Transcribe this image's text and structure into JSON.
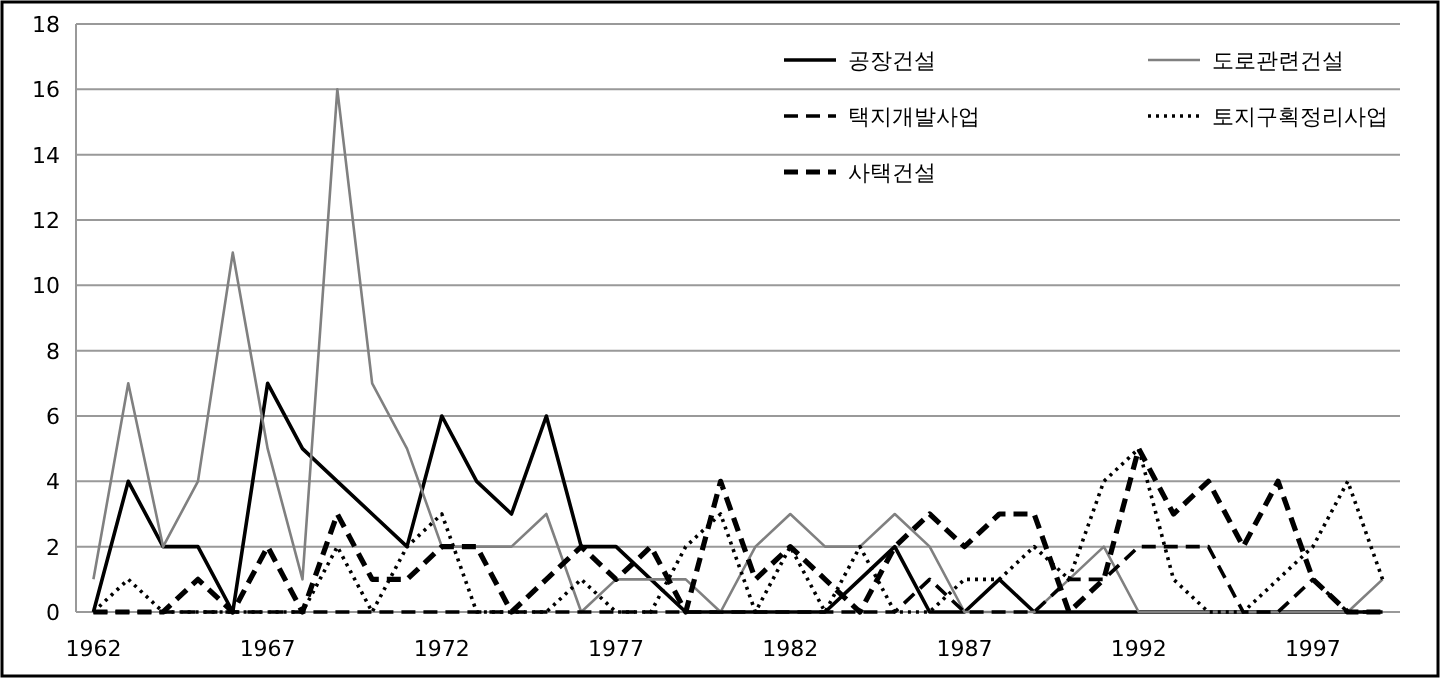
{
  "chart_data": {
    "type": "line",
    "x": [
      1962,
      1963,
      1964,
      1965,
      1966,
      1967,
      1968,
      1969,
      1970,
      1971,
      1972,
      1973,
      1974,
      1975,
      1976,
      1977,
      1978,
      1979,
      1980,
      1981,
      1982,
      1983,
      1984,
      1985,
      1986,
      1987,
      1988,
      1989,
      1990,
      1991,
      1992,
      1993,
      1994,
      1995,
      1996,
      1997,
      1998,
      1999
    ],
    "series": [
      {
        "name": "공장건설",
        "color": "#000000",
        "line_style": "solid",
        "values": [
          0,
          4,
          2,
          2,
          0,
          7,
          5,
          4,
          3,
          2,
          6,
          4,
          3,
          6,
          2,
          2,
          1,
          0,
          0,
          0,
          0,
          0,
          1,
          2,
          0,
          0,
          1,
          0,
          0,
          0,
          0,
          0,
          0,
          0,
          0,
          0,
          0,
          0
        ]
      },
      {
        "name": "도로관련건설",
        "color": "#808080",
        "line_style": "solid",
        "values": [
          1,
          7,
          2,
          4,
          11,
          5,
          1,
          16,
          7,
          5,
          2,
          2,
          2,
          3,
          0,
          1,
          1,
          1,
          0,
          2,
          3,
          2,
          2,
          3,
          2,
          0,
          0,
          0,
          1,
          2,
          0,
          0,
          0,
          0,
          0,
          0,
          0,
          1
        ]
      },
      {
        "name": "택지개발사업",
        "color": "#000000",
        "line_style": "dashed",
        "values": [
          0,
          0,
          0,
          0,
          0,
          0,
          0,
          0,
          0,
          0,
          0,
          0,
          0,
          0,
          0,
          0,
          0,
          0,
          0,
          0,
          0,
          0,
          0,
          0,
          1,
          0,
          0,
          0,
          1,
          1,
          2,
          2,
          2,
          0,
          0,
          1,
          0,
          0
        ]
      },
      {
        "name": "토지구획정리사업",
        "color": "#000000",
        "line_style": "dotted",
        "values": [
          0,
          1,
          0,
          0,
          0,
          0,
          0,
          2,
          0,
          2,
          3,
          0,
          0,
          0,
          1,
          0,
          0,
          2,
          3,
          0,
          2,
          0,
          2,
          0,
          0,
          1,
          1,
          2,
          1,
          4,
          5,
          1,
          0,
          0,
          1,
          2,
          4,
          1
        ]
      },
      {
        "name": "사택건설",
        "color": "#000000",
        "line_style": "dashed",
        "values": [
          0,
          0,
          0,
          1,
          0,
          2,
          0,
          3,
          1,
          1,
          2,
          2,
          0,
          1,
          2,
          1,
          2,
          0,
          4,
          1,
          2,
          1,
          0,
          2,
          3,
          2,
          3,
          3,
          0,
          1,
          5,
          3,
          4,
          2,
          4,
          1,
          0,
          0
        ]
      }
    ],
    "xlim": [
      1961.5,
      1999.5
    ],
    "xticks": [
      1962,
      1967,
      1972,
      1977,
      1982,
      1987,
      1992,
      1997
    ],
    "ylim": [
      0,
      18
    ],
    "yticks": [
      0,
      2,
      4,
      6,
      8,
      10,
      12,
      14,
      16,
      18
    ],
    "grid": "y",
    "legend": "top right",
    "marker": "none"
  }
}
